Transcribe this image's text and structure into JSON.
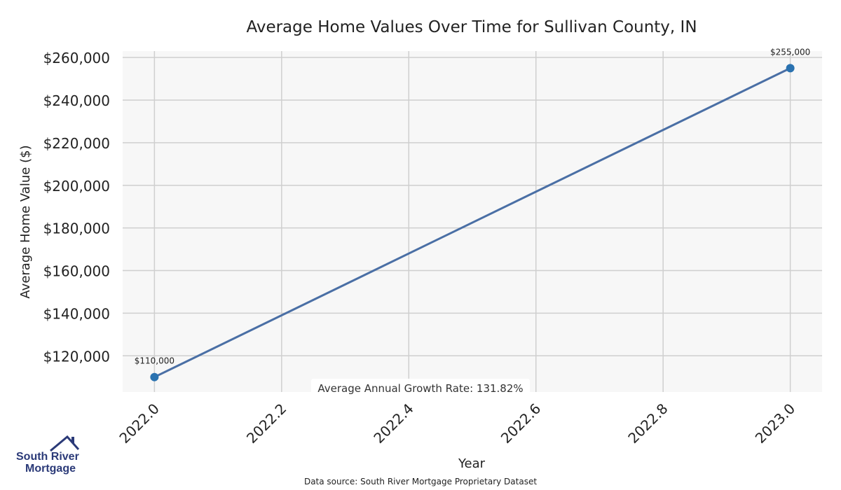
{
  "chart_data": {
    "type": "line",
    "title": "Average Home Values Over Time for Sullivan County, IN",
    "xlabel": "Year",
    "ylabel": "Average Home Value ($)",
    "x": [
      2022.0,
      2023.0
    ],
    "series": [
      {
        "values": [
          110000,
          255000
        ]
      }
    ],
    "data_labels": [
      "$110,000",
      "$255,000"
    ],
    "xlim": [
      2021.95,
      2023.05
    ],
    "ylim": [
      103000,
      263000
    ],
    "x_ticks": [
      2022.0,
      2022.2,
      2022.4,
      2022.6,
      2022.8,
      2023.0
    ],
    "x_tick_labels": [
      "2022.0",
      "2022.2",
      "2022.4",
      "2022.6",
      "2022.8",
      "2023.0"
    ],
    "y_ticks": [
      120000,
      140000,
      160000,
      180000,
      200000,
      220000,
      240000,
      260000
    ],
    "y_tick_labels": [
      "$120,000",
      "$140,000",
      "$160,000",
      "$180,000",
      "$200,000",
      "$220,000",
      "$240,000",
      "$260,000"
    ],
    "annotation": "Average Annual Growth Rate: 131.82%",
    "grid": true,
    "colors": {
      "line": "#4a6fa5",
      "marker": "#2a72b0",
      "plot_bg": "#f7f7f7",
      "grid": "#cfcfcf"
    }
  },
  "footer": {
    "source": "Data source: South River Mortgage Proprietary Dataset",
    "logo_line1": "South River",
    "logo_line2": "Mortgage",
    "logo_icon": "house-roof-icon",
    "logo_color": "#2b3a78"
  }
}
